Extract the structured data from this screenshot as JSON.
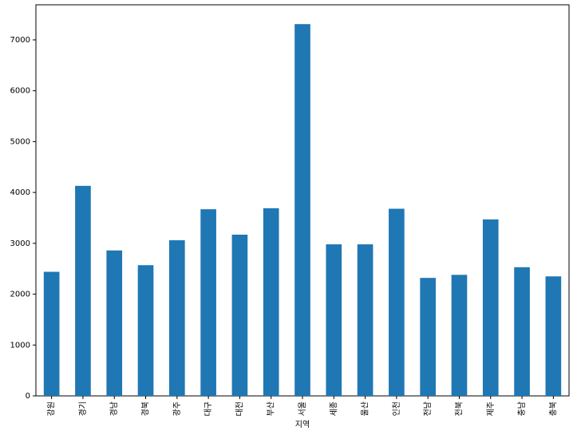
{
  "chart_data": {
    "type": "bar",
    "x_label": "지역",
    "categories": [
      "강원",
      "경기",
      "경남",
      "경북",
      "광주",
      "대구",
      "대전",
      "부산",
      "서울",
      "세종",
      "울산",
      "인천",
      "전남",
      "전북",
      "제주",
      "충남",
      "충북"
    ],
    "values": [
      2440,
      4130,
      2860,
      2570,
      3060,
      3670,
      3170,
      3690,
      7310,
      2980,
      2980,
      3680,
      2320,
      2380,
      3470,
      2530,
      2350
    ],
    "color": "#1f77b4",
    "ylim": [
      0,
      7690
    ],
    "yticks": [
      0,
      1000,
      2000,
      3000,
      4000,
      5000,
      6000,
      7000
    ],
    "grid": false
  }
}
